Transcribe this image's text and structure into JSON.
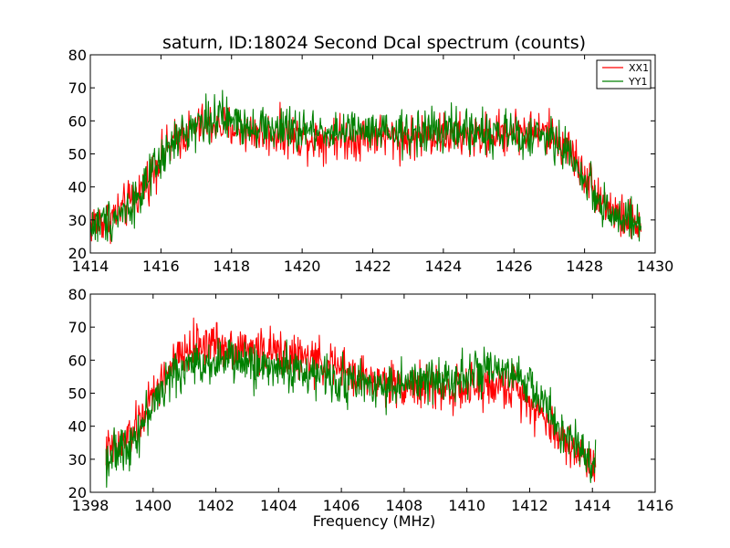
{
  "colors": {
    "xx": "#ff0000",
    "yy": "#008000"
  },
  "chart_data": [
    {
      "type": "line",
      "title": "saturn, ID:18024 Second Dcal spectrum (counts)",
      "xlabel": "",
      "ylabel": "",
      "xlim": [
        1414,
        1430
      ],
      "ylim": [
        20,
        80
      ],
      "xticks": [
        "1414",
        "1416",
        "1418",
        "1420",
        "1422",
        "1424",
        "1426",
        "1428",
        "1430"
      ],
      "yticks": [
        "20",
        "30",
        "40",
        "50",
        "60",
        "70",
        "80"
      ],
      "legend": {
        "placement": "top-right",
        "entries": [
          "XX1",
          "YY1"
        ]
      },
      "series": [
        {
          "name": "XX1",
          "color": "#ff0000",
          "x": [
            1414.0,
            1414.5,
            1415.0,
            1415.5,
            1416.0,
            1416.5,
            1417.0,
            1417.5,
            1418.0,
            1418.5,
            1419.0,
            1419.5,
            1420.0,
            1420.5,
            1421.0,
            1421.5,
            1422.0,
            1422.5,
            1423.0,
            1423.5,
            1424.0,
            1424.5,
            1425.0,
            1425.5,
            1426.0,
            1426.5,
            1427.0,
            1427.5,
            1428.0,
            1428.5,
            1429.0,
            1429.6
          ],
          "values": [
            29,
            30,
            34,
            40,
            49,
            55,
            58,
            59,
            58,
            57,
            56,
            56,
            55,
            55,
            55,
            55,
            56,
            55,
            55,
            56,
            56,
            55,
            55,
            56,
            57,
            57,
            56,
            52,
            44,
            36,
            31,
            28
          ],
          "noise": 6
        },
        {
          "name": "YY1",
          "color": "#008000",
          "x": [
            1414.0,
            1414.5,
            1415.0,
            1415.5,
            1416.0,
            1416.5,
            1417.0,
            1417.5,
            1418.0,
            1418.5,
            1419.0,
            1419.5,
            1420.0,
            1420.5,
            1421.0,
            1421.5,
            1422.0,
            1422.5,
            1423.0,
            1423.5,
            1424.0,
            1424.5,
            1425.0,
            1425.5,
            1426.0,
            1426.5,
            1427.0,
            1427.5,
            1428.0,
            1428.5,
            1429.0,
            1429.6
          ],
          "values": [
            28,
            30,
            33,
            39,
            48,
            55,
            59,
            61,
            60,
            59,
            58,
            57,
            57,
            57,
            57,
            57,
            56,
            56,
            56,
            57,
            57,
            57,
            57,
            56,
            56,
            55,
            55,
            51,
            42,
            35,
            30,
            28
          ],
          "noise": 6
        }
      ]
    },
    {
      "type": "line",
      "title": "",
      "xlabel": "Frequency (MHz)",
      "ylabel": "",
      "xlim": [
        1398,
        1416
      ],
      "ylim": [
        20,
        80
      ],
      "xticks": [
        "1398",
        "1400",
        "1402",
        "1404",
        "1406",
        "1408",
        "1410",
        "1412",
        "1414",
        "1416"
      ],
      "yticks": [
        "20",
        "30",
        "40",
        "50",
        "60",
        "70",
        "80"
      ],
      "series": [
        {
          "name": "XX1",
          "color": "#ff0000",
          "x": [
            1398.5,
            1399.0,
            1399.5,
            1400.0,
            1400.5,
            1401.0,
            1401.5,
            1402.0,
            1402.5,
            1403.0,
            1403.5,
            1404.0,
            1404.5,
            1405.0,
            1405.5,
            1406.0,
            1406.5,
            1407.0,
            1407.5,
            1408.0,
            1408.5,
            1409.0,
            1409.5,
            1410.0,
            1410.5,
            1411.0,
            1411.5,
            1412.0,
            1412.5,
            1413.0,
            1413.5,
            1414.1
          ],
          "values": [
            32,
            34,
            40,
            49,
            57,
            62,
            65,
            65,
            64,
            63,
            63,
            62,
            61,
            60,
            59,
            57,
            55,
            54,
            53,
            53,
            52,
            52,
            51,
            51,
            52,
            52,
            52,
            48,
            42,
            37,
            32,
            29
          ],
          "noise": 6
        },
        {
          "name": "YY1",
          "color": "#008000",
          "x": [
            1398.5,
            1399.0,
            1399.5,
            1400.0,
            1400.5,
            1401.0,
            1401.5,
            1402.0,
            1402.5,
            1403.0,
            1403.5,
            1404.0,
            1404.5,
            1405.0,
            1405.5,
            1406.0,
            1406.5,
            1407.0,
            1407.5,
            1408.0,
            1408.5,
            1409.0,
            1409.5,
            1410.0,
            1410.5,
            1411.0,
            1411.5,
            1412.0,
            1412.5,
            1413.0,
            1413.5,
            1414.1
          ],
          "values": [
            30,
            33,
            38,
            47,
            54,
            58,
            59,
            60,
            60,
            59,
            58,
            58,
            57,
            56,
            55,
            54,
            53,
            53,
            52,
            53,
            53,
            54,
            55,
            56,
            56,
            56,
            55,
            53,
            46,
            39,
            33,
            29
          ],
          "noise": 6
        }
      ]
    }
  ]
}
